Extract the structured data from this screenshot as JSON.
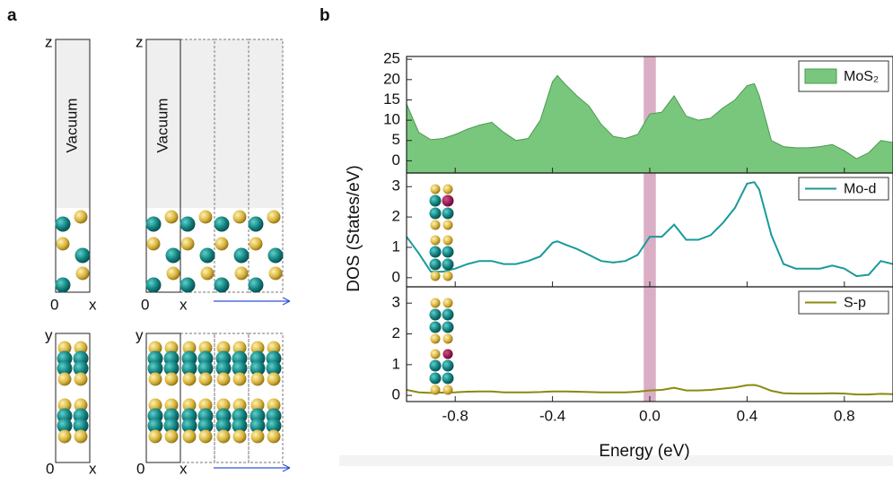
{
  "panel_a": {
    "label": "a",
    "side_views": [
      {
        "vertical": "z",
        "origin": "0",
        "horizontal": "x",
        "region": "Vacuum"
      },
      {
        "vertical": "z",
        "origin": "0",
        "horizontal": "x",
        "region": "Vacuum"
      }
    ],
    "top_views": [
      {
        "vertical": "y",
        "origin": "0",
        "horizontal": "x"
      },
      {
        "vertical": "y",
        "origin": "0",
        "horizontal": "x"
      }
    ]
  },
  "panel_b": {
    "label": "b",
    "ylabel": "DOS (States/eV)",
    "xlabel": "Energy (eV)",
    "highlight_x": [
      -0.025,
      0.025
    ]
  },
  "chart_data": [
    {
      "type": "area",
      "ylim": [
        -3,
        25.7
      ],
      "yticks": [
        0,
        5,
        10,
        15,
        20,
        25
      ],
      "xlim": [
        -1,
        1
      ],
      "legend": "upper right",
      "x": [
        -1,
        -0.95,
        -0.9,
        -0.85,
        -0.8,
        -0.75,
        -0.7,
        -0.65,
        -0.6,
        -0.55,
        -0.5,
        -0.45,
        -0.4,
        -0.38,
        -0.35,
        -0.3,
        -0.25,
        -0.2,
        -0.15,
        -0.1,
        -0.05,
        0,
        0.05,
        0.1,
        0.15,
        0.2,
        0.25,
        0.3,
        0.35,
        0.4,
        0.43,
        0.45,
        0.5,
        0.55,
        0.6,
        0.65,
        0.7,
        0.75,
        0.8,
        0.85,
        0.9,
        0.95,
        1
      ],
      "series": [
        {
          "name": "MoS₂",
          "color": "#79c77d",
          "values": [
            14,
            7,
            5.2,
            5.5,
            6.5,
            7.8,
            8.8,
            9.5,
            7,
            5,
            5.5,
            10,
            19.5,
            21,
            19,
            16,
            13.5,
            9,
            6,
            5.5,
            6.5,
            11.5,
            12,
            16,
            11,
            10,
            10.5,
            13,
            15,
            18.5,
            19,
            16,
            5,
            3.5,
            3.2,
            3.2,
            3.5,
            4,
            2.5,
            0.5,
            2,
            5,
            4.5
          ]
        }
      ]
    },
    {
      "type": "line",
      "ylim": [
        -0.3,
        3.45
      ],
      "yticks": [
        0,
        1,
        2,
        3
      ],
      "xlim": [
        -1,
        1
      ],
      "legend": "upper right",
      "x": [
        -1,
        -0.95,
        -0.9,
        -0.85,
        -0.8,
        -0.75,
        -0.7,
        -0.65,
        -0.6,
        -0.55,
        -0.5,
        -0.45,
        -0.4,
        -0.38,
        -0.35,
        -0.3,
        -0.25,
        -0.2,
        -0.15,
        -0.1,
        -0.05,
        0,
        0.05,
        0.1,
        0.15,
        0.2,
        0.25,
        0.3,
        0.35,
        0.4,
        0.43,
        0.45,
        0.5,
        0.55,
        0.6,
        0.65,
        0.7,
        0.75,
        0.8,
        0.85,
        0.9,
        0.95,
        1
      ],
      "series": [
        {
          "name": "Mo-d",
          "color": "#1a9a9a",
          "values": [
            1.35,
            0.8,
            0.2,
            0.2,
            0.3,
            0.45,
            0.55,
            0.55,
            0.45,
            0.45,
            0.55,
            0.7,
            1.15,
            1.2,
            1.1,
            0.95,
            0.75,
            0.55,
            0.5,
            0.55,
            0.75,
            1.35,
            1.35,
            1.75,
            1.25,
            1.25,
            1.4,
            1.8,
            2.3,
            3.1,
            3.15,
            2.9,
            1.4,
            0.45,
            0.3,
            0.3,
            0.3,
            0.4,
            0.3,
            0.05,
            0.1,
            0.55,
            0.45
          ]
        }
      ]
    },
    {
      "type": "line",
      "ylim": [
        -0.2,
        3.53
      ],
      "yticks": [
        0,
        1,
        2,
        3
      ],
      "xlim": [
        -1,
        1
      ],
      "legend": "upper right",
      "xticks": [
        -0.8,
        -0.4,
        {
          "value": 0,
          "label": "0.0"
        },
        0.4,
        0.8
      ],
      "x": [
        -1,
        -0.95,
        -0.9,
        -0.85,
        -0.8,
        -0.75,
        -0.7,
        -0.65,
        -0.6,
        -0.55,
        -0.5,
        -0.45,
        -0.4,
        -0.38,
        -0.35,
        -0.3,
        -0.25,
        -0.2,
        -0.15,
        -0.1,
        -0.05,
        0,
        0.05,
        0.1,
        0.15,
        0.2,
        0.25,
        0.3,
        0.35,
        0.4,
        0.43,
        0.45,
        0.5,
        0.55,
        0.6,
        0.65,
        0.7,
        0.75,
        0.8,
        0.85,
        0.9,
        0.95,
        1
      ],
      "series": [
        {
          "name": "S-p",
          "color": "#8a8a10",
          "values": [
            0.18,
            0.1,
            0.08,
            0.09,
            0.1,
            0.12,
            0.13,
            0.13,
            0.1,
            0.1,
            0.1,
            0.11,
            0.13,
            0.13,
            0.13,
            0.12,
            0.11,
            0.1,
            0.1,
            0.1,
            0.12,
            0.16,
            0.18,
            0.25,
            0.16,
            0.16,
            0.18,
            0.22,
            0.26,
            0.33,
            0.34,
            0.3,
            0.15,
            0.07,
            0.06,
            0.06,
            0.06,
            0.07,
            0.06,
            0.03,
            0.03,
            0.05,
            0.04
          ]
        }
      ]
    }
  ]
}
